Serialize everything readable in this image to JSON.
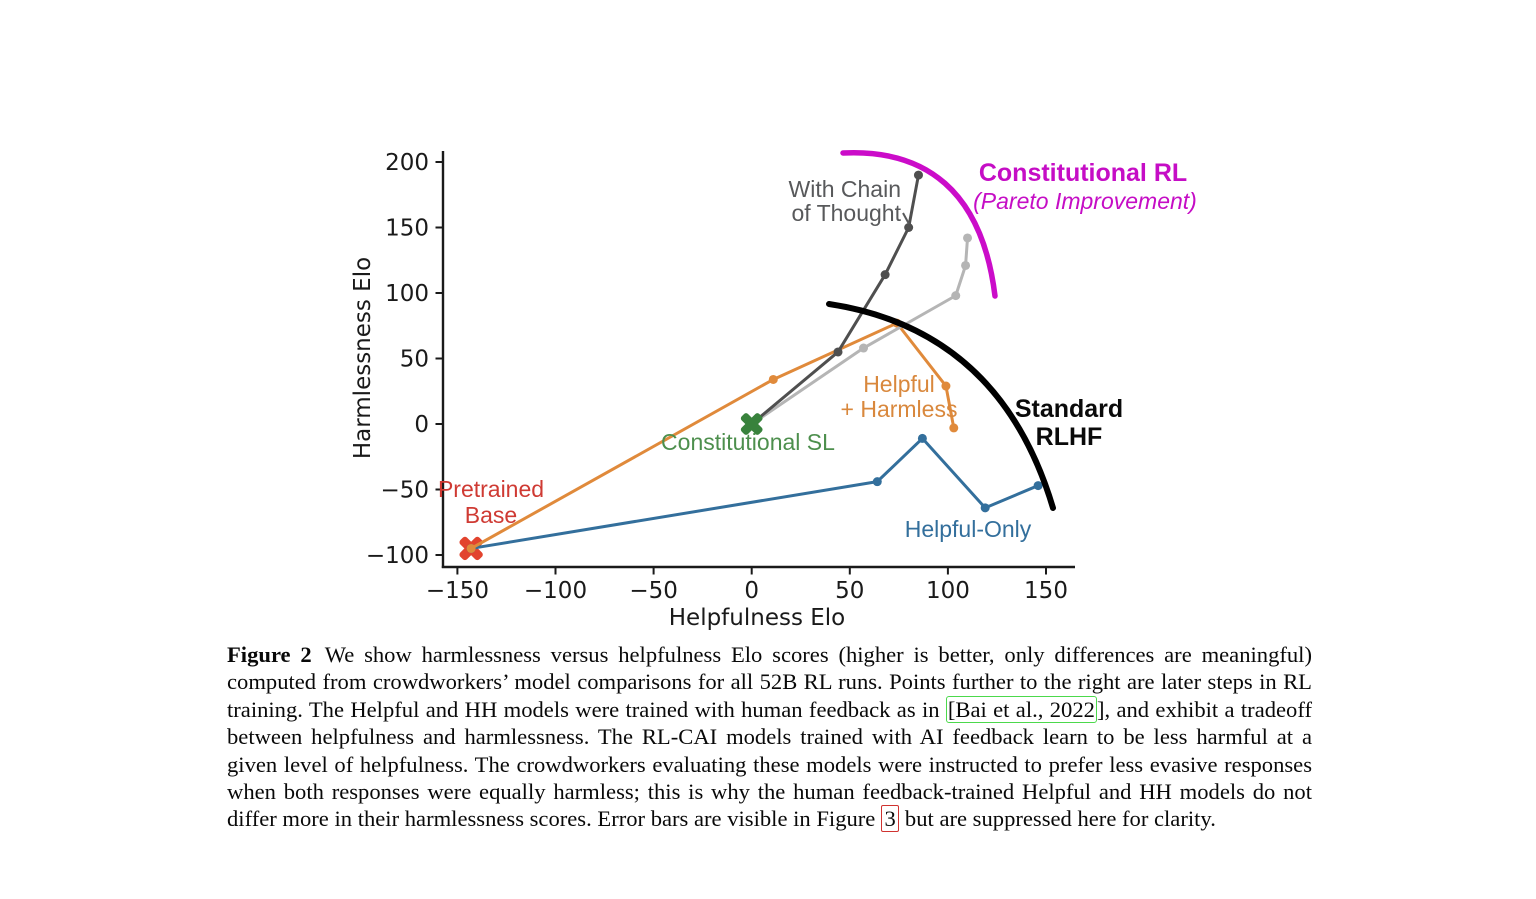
{
  "figure": {
    "xlabel": "Helpfulness Elo",
    "ylabel": "Harmlessness Elo",
    "xtick_labels": [
      "−150",
      "−100",
      "−50",
      "0",
      "50",
      "100",
      "150"
    ],
    "xtick_values": [
      -150,
      -100,
      -50,
      0,
      50,
      100,
      150
    ],
    "ytick_labels": [
      "200",
      "150",
      "100",
      "50",
      "0",
      "−50",
      "−100"
    ],
    "ytick_values": [
      200,
      150,
      100,
      50,
      0,
      -50,
      -100
    ]
  },
  "chart_data": {
    "type": "line",
    "title": "",
    "xlabel": "Helpfulness Elo",
    "ylabel": "Harmlessness Elo",
    "xlim": [
      -175,
      165
    ],
    "ylim": [
      -112,
      210
    ],
    "grid": false,
    "series": [
      {
        "name": "Helpful-Only",
        "color": "#336f9c",
        "points": [
          [
            -143,
            -95
          ],
          [
            64,
            -44
          ],
          [
            87,
            -11
          ],
          [
            119,
            -64
          ],
          [
            146,
            -47
          ]
        ]
      },
      {
        "name": "Helpful + Harmless",
        "color": "#e08a3b",
        "points": [
          [
            -143,
            -95
          ],
          [
            11,
            34
          ],
          [
            74,
            77
          ],
          [
            99,
            29
          ],
          [
            103,
            -3
          ]
        ]
      },
      {
        "name": "RL-CAI",
        "color": "#b5b5b5",
        "points": [
          [
            0,
            0
          ],
          [
            57,
            58
          ],
          [
            104,
            98
          ],
          [
            109,
            121
          ],
          [
            110,
            142
          ]
        ]
      },
      {
        "name": "RL-CAI with Chain of Thought",
        "color": "#4f4f4f",
        "points": [
          [
            0,
            0
          ],
          [
            44,
            55
          ],
          [
            68,
            114
          ],
          [
            80,
            150
          ],
          [
            85,
            190
          ]
        ]
      }
    ],
    "special_points": [
      {
        "name": "Pretrained Base",
        "marker": "X",
        "color": "#e2432e",
        "point": [
          -143,
          -95
        ]
      },
      {
        "name": "Constitutional SL",
        "marker": "X",
        "color": "#38823c",
        "point": [
          0,
          0
        ]
      }
    ],
    "annotation_curves": [
      {
        "name": "Constitutional RL (Pareto Improvement)",
        "color": "#cb0cc9",
        "from": [
          46,
          208
        ],
        "to": [
          124,
          96
        ]
      },
      {
        "name": "Standard RLHF",
        "color": "#000000",
        "from": [
          40,
          92
        ],
        "to": [
          153,
          -64
        ]
      }
    ]
  },
  "annotations": {
    "with_chain_line1": "With Chain",
    "with_chain_line2": "of Thought",
    "constitutional_rl": "Constitutional RL",
    "pareto": "(Pareto Improvement)",
    "standard_line1": "Standard",
    "standard_line2": "RLHF",
    "helpful_harmless_line1": "Helpful",
    "helpful_harmless_line2": "+ Harmless",
    "helpful_only": "Helpful-Only",
    "constitutional_sl": "Constitutional SL",
    "pretrained_line1": "Pretrained",
    "pretrained_line2": "Base"
  },
  "caption": {
    "label": "Figure 2",
    "body_1": "We show harmlessness versus helpfulness Elo scores (higher is better, only differences are meaningful) computed from crowdworkers’ model comparisons for all 52B RL runs. Points further to the right are later steps in RL training. The Helpful and HH models were trained with human feedback as in ",
    "citation": "[Bai et al., 2022",
    "body_2": "], and exhibit a tradeoff between helpfulness and harmlessness. The RL-CAI models trained with AI feedback learn to be less harmful at a given level of helpfulness. The crowdworkers evaluating these models were instructed to prefer less evasive responses when both responses were equally harmless; this is why the human feedback-trained Helpful and HH models do not differ more in their harmlessness scores. Error bars are visible in Figure ",
    "figure_ref": "3",
    "body_3": " but are suppressed here for clarity."
  },
  "colors": {
    "magenta": "#cb0cc9",
    "black_curve": "#000000",
    "dark_gray": "#4f4f4f",
    "light_gray": "#b5b5b5",
    "orange": "#e08a3b",
    "blue": "#336f9c",
    "green": "#38823c",
    "red": "#e2432e",
    "red_text": "#cf3a33",
    "green_text": "#4d8f4d",
    "gray_text": "#58595b"
  }
}
